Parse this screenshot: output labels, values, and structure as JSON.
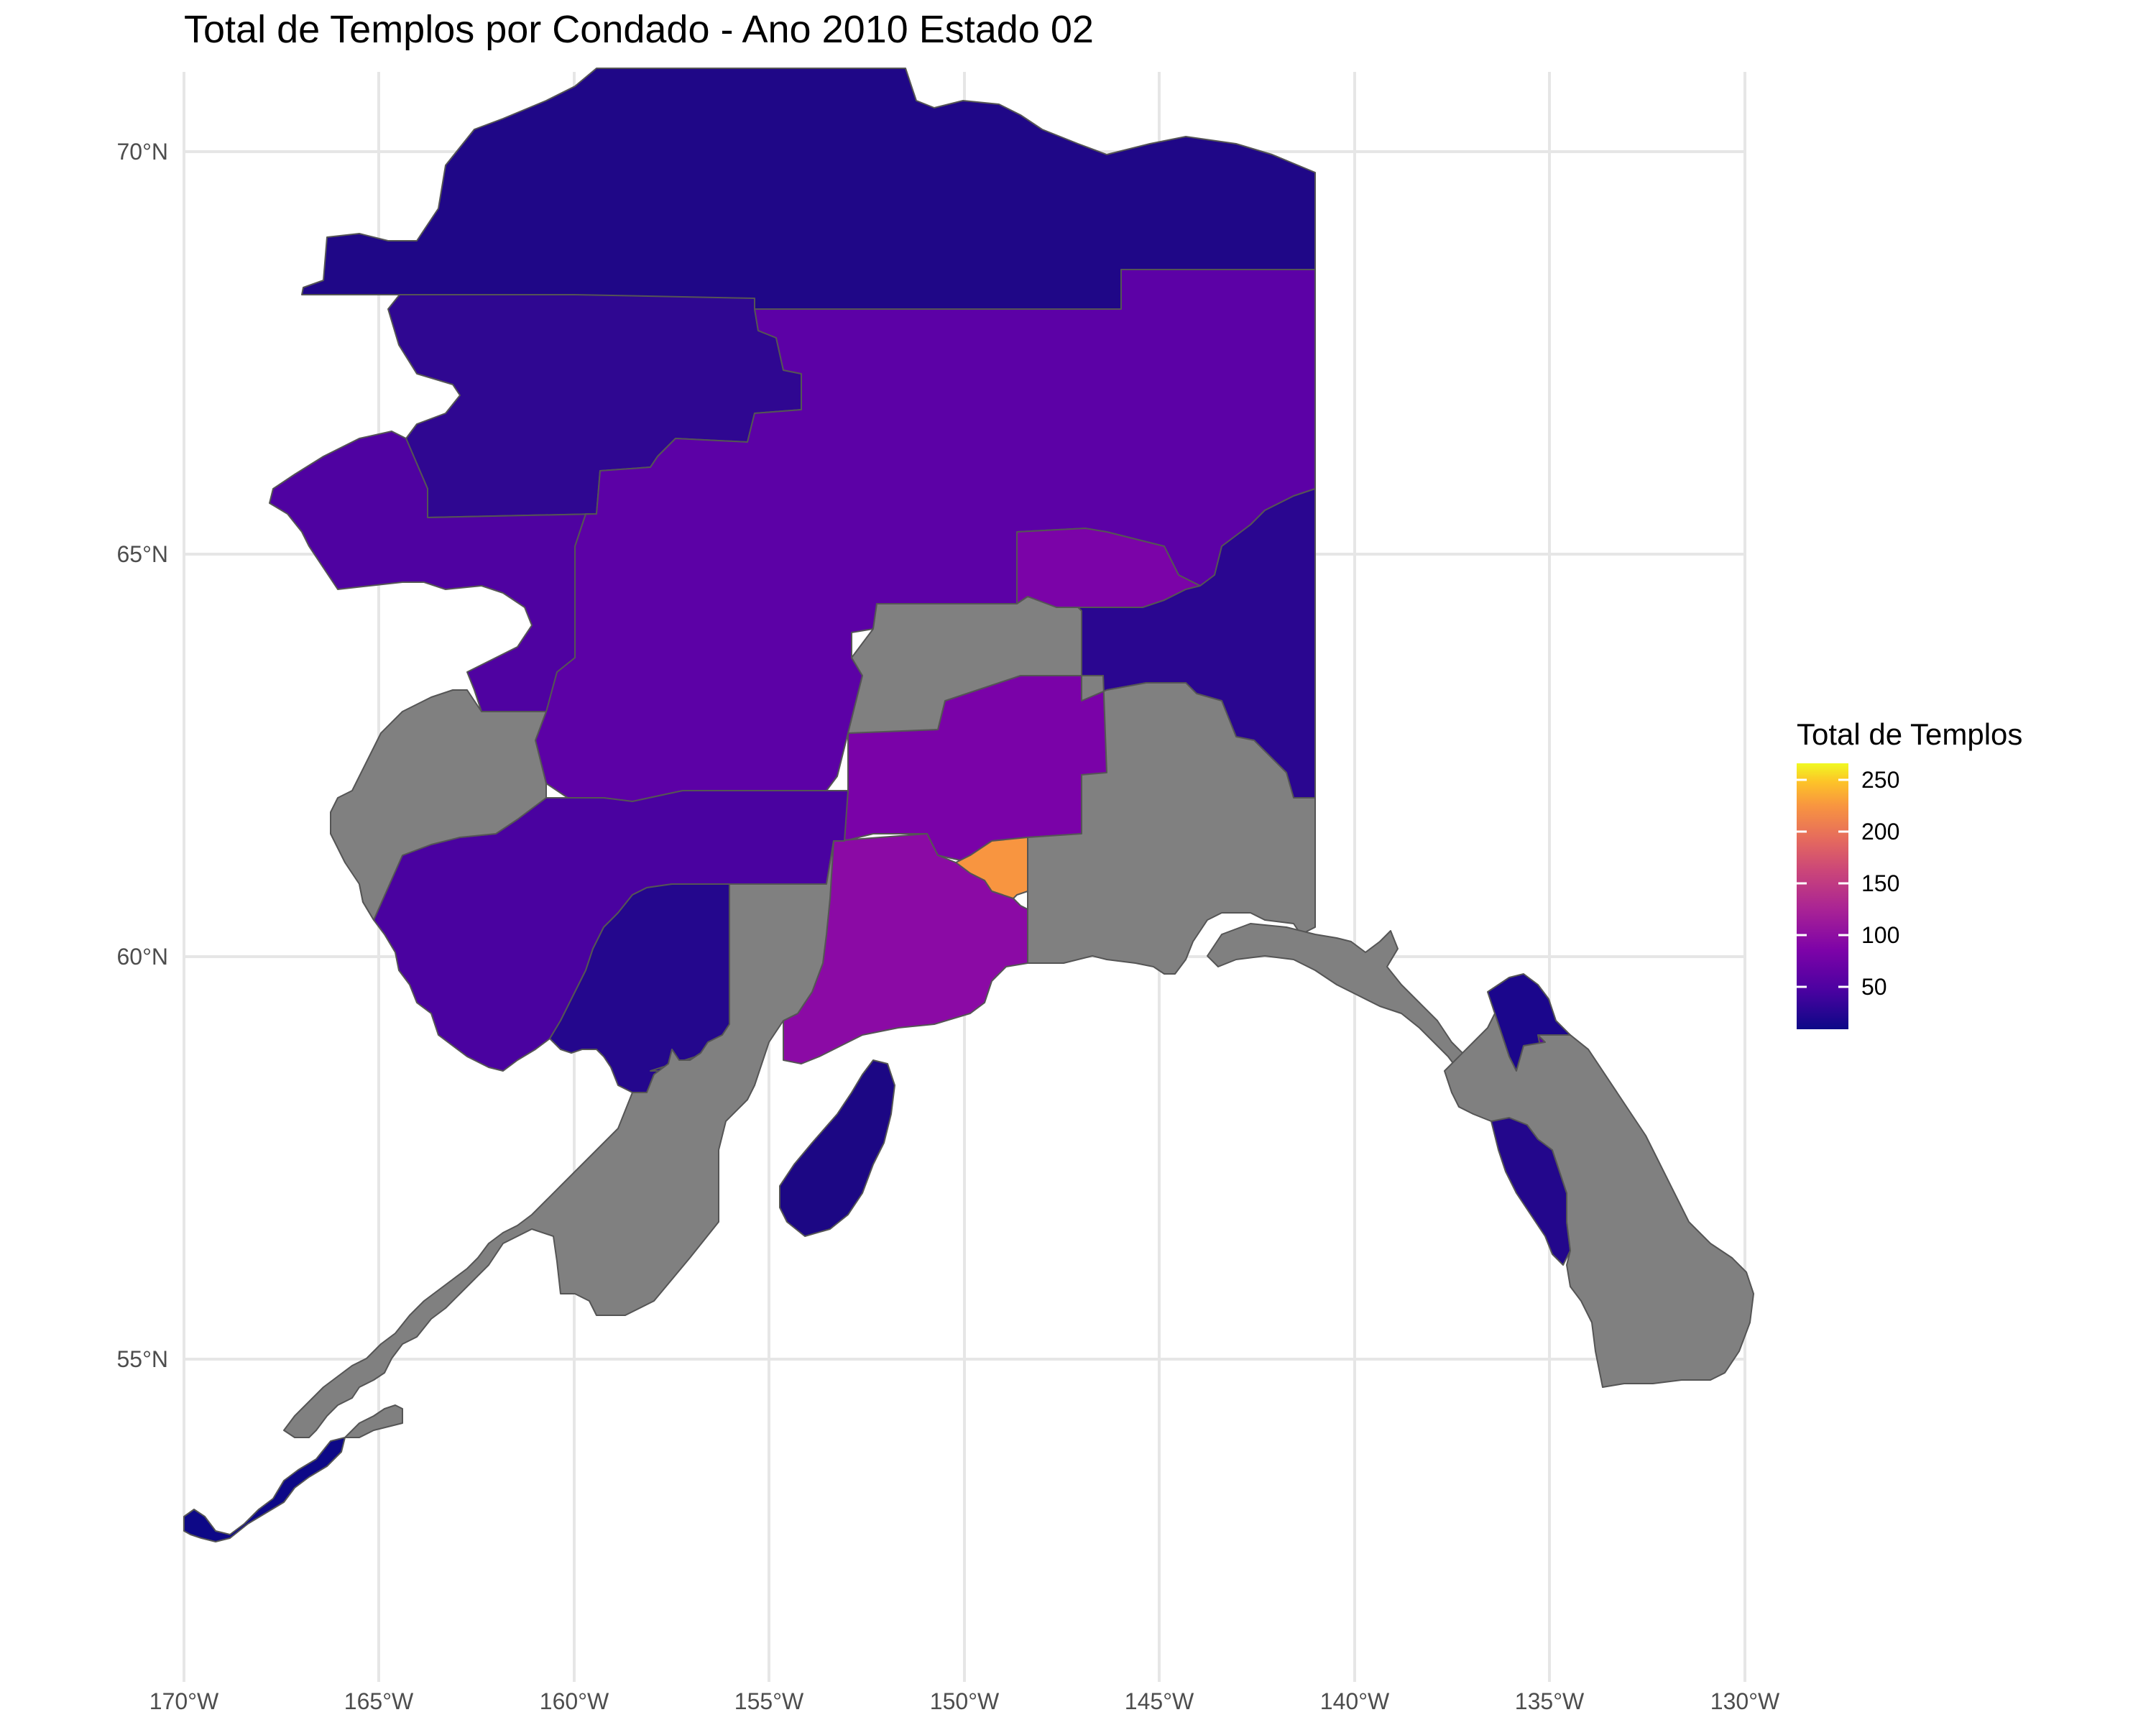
{
  "title": "Total de Templos por Condado - Ano 2010 Estado 02",
  "map": {
    "type": "choropleth",
    "projection": "lon-lat",
    "lon_range": [
      -170,
      -130
    ],
    "lat_range": [
      51,
      71
    ],
    "x_ticks": [
      "170°W",
      "165°W",
      "160°W",
      "155°W",
      "150°W",
      "145°W",
      "140°W",
      "135°W",
      "130°W"
    ],
    "y_ticks": [
      "55°N",
      "60°N",
      "65°N",
      "70°N"
    ],
    "grid": true,
    "missing_color": "#808080",
    "legend": {
      "title": "Total de Templos",
      "position": "right",
      "palette": "plasma",
      "range": [
        10,
        265
      ],
      "ticks": [
        "250",
        "200",
        "150",
        "100",
        "50"
      ]
    }
  },
  "colors": {
    "north_slope": "#1f0787",
    "northwest_arctic": "#2f0791",
    "yukon_koyukuk": "#5c01a6",
    "nome": "#4f02a1",
    "fairbanks": "#7b03a8",
    "southeast_fairbanks": "#2a0690",
    "matanuska_susitna": "#7a02a8",
    "anchorage": "#f89540",
    "kenai": "#8b0aa5",
    "bethel": "#4a02a0",
    "dillingham": "#24078d",
    "aleutians_west": "#0d0887",
    "kodiak": "#1c0784",
    "skagway_haines": "#1b068c",
    "juneau": "#5901a5",
    "sitka": "#23078c",
    "no_data": "#808080"
  }
}
